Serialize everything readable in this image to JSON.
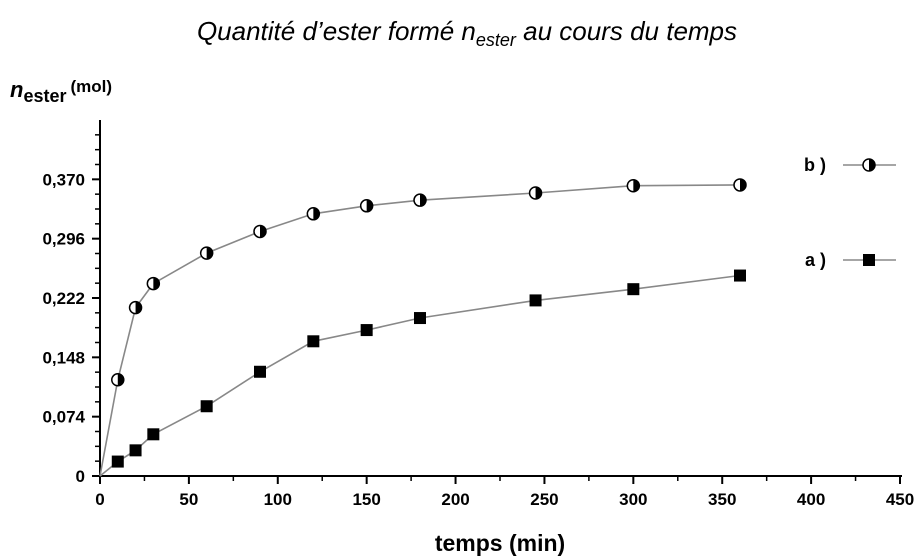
{
  "chart_data": {
    "type": "line",
    "title": {
      "prefix": "Quantité d’ester formé n",
      "sub": "ester",
      "suffix": " au cours du temps"
    },
    "ylabel": {
      "main": "n",
      "sub": "ester",
      "unit": "(mol)"
    },
    "xlabel": "temps (min)",
    "xlim": [
      0,
      450
    ],
    "ylim": [
      0,
      0.444
    ],
    "x_ticks": [
      0,
      50,
      100,
      150,
      200,
      250,
      300,
      350,
      400,
      450
    ],
    "x_tick_labels": [
      "0",
      "50",
      "100",
      "150",
      "200",
      "250",
      "300",
      "350",
      "400",
      "450"
    ],
    "y_ticks": [
      0,
      0.074,
      0.148,
      0.222,
      0.296,
      0.37
    ],
    "y_tick_labels": [
      "0",
      "0,074",
      "0,148",
      "0,222",
      "0,296",
      "0,370"
    ],
    "grid": false,
    "legend_position": "right",
    "series": [
      {
        "name": "b )",
        "marker": "half-filled-circle",
        "points": [
          [
            0,
            0
          ],
          [
            10,
            0.12
          ],
          [
            20,
            0.21
          ],
          [
            30,
            0.24
          ],
          [
            60,
            0.278
          ],
          [
            90,
            0.305
          ],
          [
            120,
            0.327
          ],
          [
            150,
            0.337
          ],
          [
            180,
            0.344
          ],
          [
            245,
            0.353
          ],
          [
            300,
            0.362
          ],
          [
            360,
            0.363
          ]
        ]
      },
      {
        "name": "a )",
        "marker": "filled-square",
        "points": [
          [
            0,
            0
          ],
          [
            10,
            0.018
          ],
          [
            20,
            0.032
          ],
          [
            30,
            0.052
          ],
          [
            60,
            0.087
          ],
          [
            90,
            0.13
          ],
          [
            120,
            0.168
          ],
          [
            150,
            0.182
          ],
          [
            180,
            0.197
          ],
          [
            245,
            0.219
          ],
          [
            300,
            0.233
          ],
          [
            360,
            0.25
          ]
        ]
      }
    ]
  }
}
